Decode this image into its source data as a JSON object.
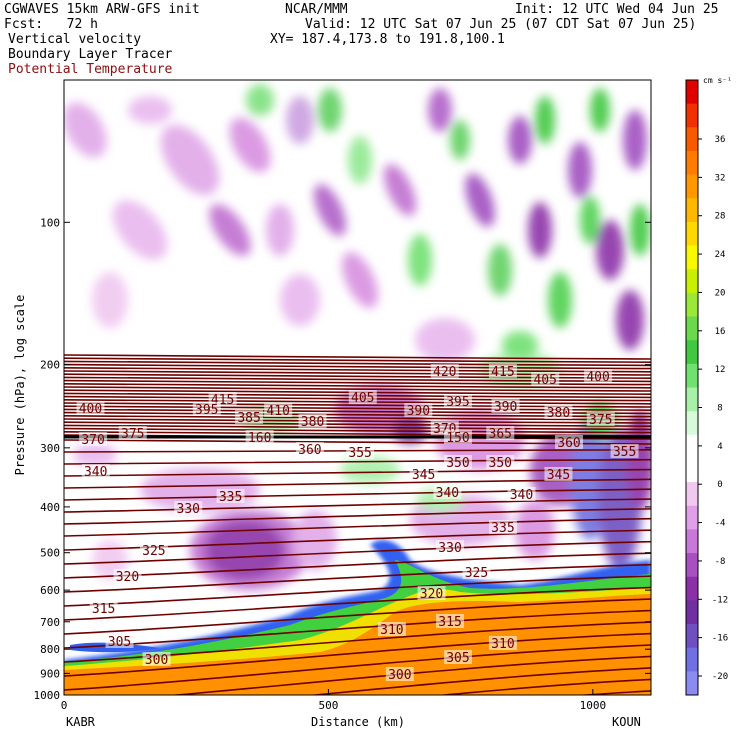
{
  "header": {
    "model": "CGWAVES 15km ARW-GFS init",
    "fcst": "Fcst:   72 h",
    "org": "NCAR/MMM",
    "init": "Init: 12 UTC Wed 04 Jun 25",
    "valid": "Valid: 12 UTC Sat 07 Jun 25 (07 CDT Sat 07 Jun 25)",
    "xy": "XY= 187.4,173.8 to 191.8,100.1",
    "field1": "Vertical velocity",
    "field2": "Boundary Layer Tracer",
    "field3": "Potential Temperature"
  },
  "colors": {
    "theta": "#6e0000",
    "tropopause": "#000000",
    "bl_orange": "#ff9000",
    "bl_yellow": "#f0e000",
    "bl_green": "#40d040",
    "bl_blue": "#3060f0"
  },
  "chart_data": {
    "type": "heatmap",
    "xlabel": "Distance (km)",
    "ylabel": "Pressure (hPa), log scale",
    "xlim": [
      0,
      1110
    ],
    "x_ticks": [
      0,
      500,
      1000
    ],
    "y_scale": "log",
    "ylim": [
      1000,
      50
    ],
    "y_ticks": [
      100,
      200,
      300,
      400,
      500,
      600,
      700,
      800,
      900,
      1000
    ],
    "endpoints": {
      "left": "KABR",
      "right": "KOUN"
    },
    "colorbar": {
      "units": "cm s⁻¹",
      "ticks": [
        36,
        32,
        28,
        24,
        20,
        16,
        12,
        8,
        4,
        0,
        -4,
        -8,
        -12,
        -16,
        -20
      ],
      "colors": [
        "#e00000",
        "#f03000",
        "#f85a00",
        "#ff7c00",
        "#ff9800",
        "#ffb800",
        "#ffd800",
        "#f8f800",
        "#c8f000",
        "#9ce838",
        "#6cd84c",
        "#40c840",
        "#70e070",
        "#a8f0a8",
        "#d8fad8",
        "#ffffff",
        "#ffffff",
        "#f0c8f0",
        "#e0a0e8",
        "#c878d8",
        "#a850c0",
        "#8c30a8",
        "#7030a0",
        "#7050c0",
        "#7070e0",
        "#8c8cf0"
      ]
    },
    "theta_labels": [
      {
        "x": 300,
        "p": 400,
        "v": "415"
      },
      {
        "x": 405,
        "p": 411,
        "v": "410"
      },
      {
        "x": 565,
        "p": 398,
        "v": "405"
      },
      {
        "x": 720,
        "p": 372,
        "v": "420"
      },
      {
        "x": 830,
        "p": 372,
        "v": "415"
      },
      {
        "x": 910,
        "p": 380,
        "v": "405"
      },
      {
        "x": 1010,
        "p": 377,
        "v": "400"
      },
      {
        "x": 50,
        "p": 409,
        "v": "400"
      },
      {
        "x": 270,
        "p": 410,
        "v": "395"
      },
      {
        "x": 350,
        "p": 418,
        "v": "385"
      },
      {
        "x": 470,
        "p": 422,
        "v": "380"
      },
      {
        "x": 670,
        "p": 411,
        "v": "390"
      },
      {
        "x": 745,
        "p": 402,
        "v": "395"
      },
      {
        "x": 835,
        "p": 407,
        "v": "390"
      },
      {
        "x": 935,
        "p": 413,
        "v": "380"
      },
      {
        "x": 1015,
        "p": 420,
        "v": "375"
      },
      {
        "x": 55,
        "p": 440,
        "v": "370"
      },
      {
        "x": 130,
        "p": 434,
        "v": "375"
      },
      {
        "x": 370,
        "p": 438,
        "v": "160"
      },
      {
        "x": 720,
        "p": 429,
        "v": "370"
      },
      {
        "x": 745,
        "p": 438,
        "v": "150"
      },
      {
        "x": 825,
        "p": 434,
        "v": "365"
      },
      {
        "x": 955,
        "p": 443,
        "v": "360"
      },
      {
        "x": 465,
        "p": 450,
        "v": "360"
      },
      {
        "x": 560,
        "p": 453,
        "v": "355"
      },
      {
        "x": 745,
        "p": 463,
        "v": "350"
      },
      {
        "x": 825,
        "p": 463,
        "v": "350"
      },
      {
        "x": 1060,
        "p": 452,
        "v": "355"
      },
      {
        "x": 60,
        "p": 472,
        "v": "340"
      },
      {
        "x": 680,
        "p": 475,
        "v": "345"
      },
      {
        "x": 935,
        "p": 475,
        "v": "345"
      },
      {
        "x": 315,
        "p": 497,
        "v": "335"
      },
      {
        "x": 725,
        "p": 493,
        "v": "340"
      },
      {
        "x": 865,
        "p": 495,
        "v": "340"
      },
      {
        "x": 235,
        "p": 509,
        "v": "330"
      },
      {
        "x": 830,
        "p": 528,
        "v": "335"
      },
      {
        "x": 730,
        "p": 548,
        "v": "330"
      },
      {
        "x": 170,
        "p": 551,
        "v": "325"
      },
      {
        "x": 780,
        "p": 573,
        "v": "325"
      },
      {
        "x": 120,
        "p": 577,
        "v": "320"
      },
      {
        "x": 695,
        "p": 594,
        "v": "320"
      },
      {
        "x": 75,
        "p": 609,
        "v": "315"
      },
      {
        "x": 730,
        "p": 622,
        "v": "315"
      },
      {
        "x": 620,
        "p": 630,
        "v": "310"
      },
      {
        "x": 830,
        "p": 644,
        "v": "310"
      },
      {
        "x": 105,
        "p": 642,
        "v": "305"
      },
      {
        "x": 745,
        "p": 658,
        "v": "305"
      },
      {
        "x": 175,
        "p": 660,
        "v": "300"
      },
      {
        "x": 635,
        "p": 675,
        "v": "300"
      }
    ]
  }
}
